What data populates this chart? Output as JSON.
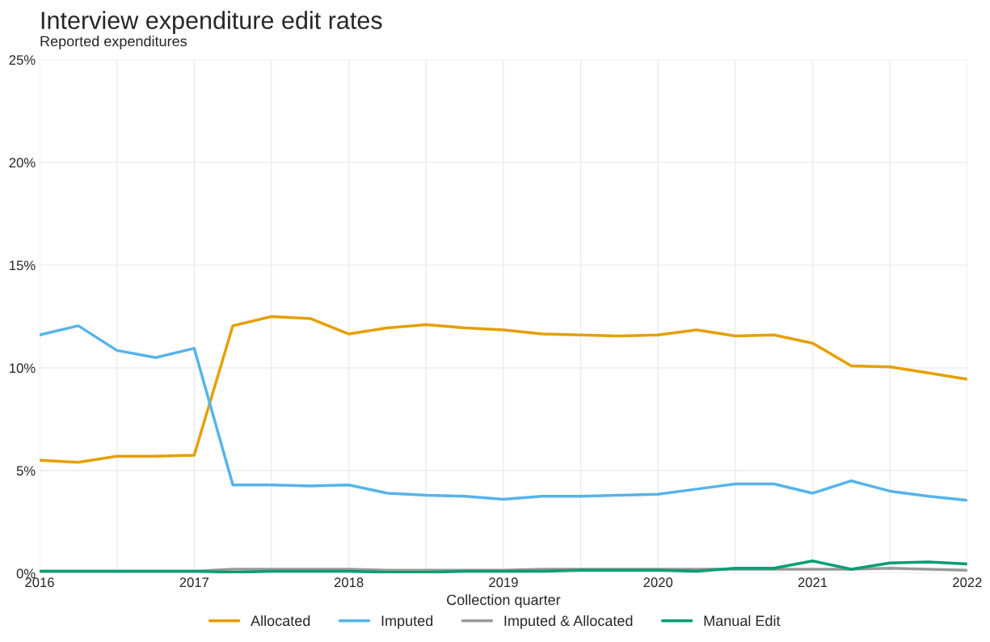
{
  "chart_data": {
    "type": "line",
    "title": "Interview expenditure edit rates",
    "subtitle": "Reported expenditures",
    "xlabel": "Collection quarter",
    "x": [
      2016,
      2016.25,
      2016.5,
      2016.75,
      2017,
      2017.25,
      2017.5,
      2017.75,
      2018,
      2018.25,
      2018.5,
      2018.75,
      2019,
      2019.25,
      2019.5,
      2019.75,
      2020,
      2020.25,
      2020.5,
      2020.75,
      2021,
      2021.25,
      2021.5,
      2021.75,
      2022
    ],
    "series": [
      {
        "name": "Allocated",
        "color": "#e69f00",
        "values": [
          5.5,
          5.4,
          5.7,
          5.7,
          5.75,
          12.05,
          12.5,
          12.4,
          11.65,
          11.95,
          12.1,
          11.95,
          11.85,
          11.65,
          11.6,
          11.55,
          11.6,
          11.85,
          11.55,
          11.6,
          11.2,
          10.1,
          10.05,
          9.75,
          9.45
        ]
      },
      {
        "name": "Imputed",
        "color": "#56b4e9",
        "values": [
          11.6,
          12.05,
          10.85,
          10.5,
          10.95,
          4.3,
          4.3,
          4.25,
          4.3,
          3.9,
          3.8,
          3.75,
          3.6,
          3.75,
          3.75,
          3.8,
          3.85,
          4.1,
          4.35,
          4.35,
          3.9,
          4.5,
          4.0,
          3.75,
          3.55
        ]
      },
      {
        "name": "Imputed & Allocated",
        "color": "#999999",
        "values": [
          0.1,
          0.1,
          0.1,
          0.1,
          0.1,
          0.2,
          0.2,
          0.2,
          0.2,
          0.15,
          0.15,
          0.15,
          0.15,
          0.2,
          0.2,
          0.2,
          0.2,
          0.2,
          0.2,
          0.2,
          0.2,
          0.2,
          0.25,
          0.2,
          0.15
        ]
      },
      {
        "name": "Manual Edit",
        "color": "#009e73",
        "values": [
          0.1,
          0.1,
          0.1,
          0.1,
          0.1,
          0.05,
          0.1,
          0.1,
          0.1,
          0.05,
          0.05,
          0.1,
          0.1,
          0.1,
          0.15,
          0.15,
          0.15,
          0.1,
          0.25,
          0.25,
          0.6,
          0.2,
          0.5,
          0.55,
          0.45
        ]
      }
    ],
    "xlim": [
      2016,
      2022
    ],
    "xticks": [
      2016,
      {
        "value": 2016.5,
        "label": null
      },
      2017,
      {
        "value": 2017.5,
        "label": null
      },
      2018,
      {
        "value": 2018.5,
        "label": null
      },
      2019,
      {
        "value": 2019.5,
        "label": null
      },
      2020,
      {
        "value": 2020.5,
        "label": null
      },
      2021,
      {
        "value": 2021.5,
        "label": null
      },
      2022
    ],
    "ylim": [
      0,
      25
    ],
    "yticks": [
      {
        "value": 0,
        "label": "0%"
      },
      {
        "value": 5,
        "label": "5%"
      },
      {
        "value": 10,
        "label": "10%"
      },
      {
        "value": 15,
        "label": "15%"
      },
      {
        "value": 20,
        "label": "20%"
      },
      {
        "value": 25,
        "label": "25%"
      }
    ],
    "grid": true,
    "legend": "bottom",
    "line_style": "solid",
    "marker": "none"
  }
}
